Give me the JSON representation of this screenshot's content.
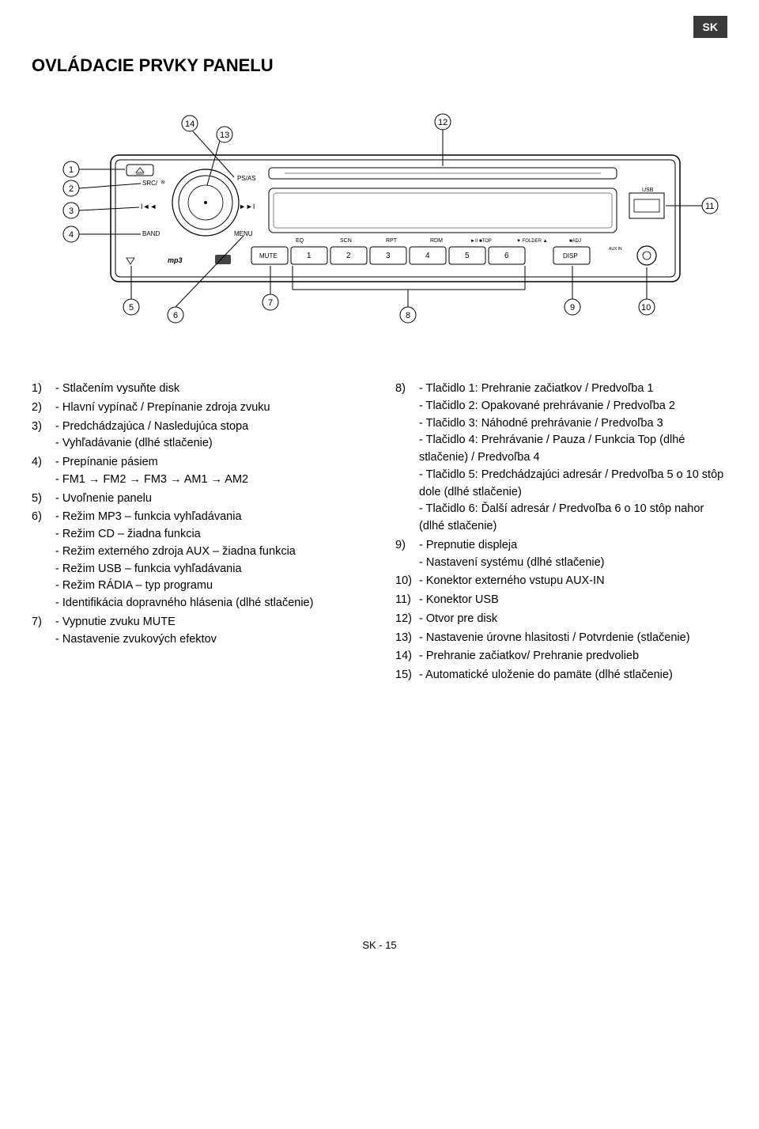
{
  "lang_badge": "SK",
  "title": "OVLÁDACIE PRVKY PANELU",
  "footer": "SK - 15",
  "diagram": {
    "callouts": [
      "1",
      "2",
      "3",
      "4",
      "5",
      "6",
      "7",
      "8",
      "9",
      "10",
      "11",
      "12",
      "13",
      "14"
    ],
    "panel_labels": {
      "src": "SRC/",
      "psas": "PS/AS",
      "prev": "I◄◄",
      "next": "►►I",
      "band": "BAND",
      "menu": "MENU",
      "mp3": "mp3",
      "usb": "USB",
      "mute": "MUTE",
      "disp": "DISP",
      "aux": "AUX IN",
      "eq": "EQ",
      "scn": "SCN",
      "rpt": "RPT",
      "rdm": "RDM",
      "top": "►II ■TOP",
      "folder": "▼ FOLDER ▲",
      "adj": "■ADJ",
      "num1": "1",
      "num2": "2",
      "num3": "3",
      "num4": "4",
      "num5": "5",
      "num6": "6"
    }
  },
  "left_items": [
    {
      "num": "1)",
      "lines": [
        "- Stlačením vysuňte disk"
      ]
    },
    {
      "num": "2)",
      "lines": [
        "- Hlavní vypínač / Prepínanie zdroja zvuku"
      ]
    },
    {
      "num": "3)",
      "lines": [
        "- Predchádzajúca / Nasledujúca stopa",
        "- Vyhľadávanie (dlhé stlačenie)"
      ]
    },
    {
      "num": "4)",
      "lines": [
        "- Prepínanie pásiem",
        "- FM1 → FM2 → FM3 → AM1 → AM2"
      ]
    },
    {
      "num": "5)",
      "lines": [
        "- Uvoľnenie panelu"
      ]
    },
    {
      "num": "6)",
      "lines": [
        "- Režim MP3 – funkcia vyhľadávania",
        "- Režim CD – žiadna funkcia",
        "- Režim externého zdroja AUX – žiadna funkcia",
        "- Režim USB – funkcia vyhľadávania",
        "- Režim RÁDIA – typ programu",
        "- Identifikácia dopravného hlásenia (dlhé stlačenie)"
      ]
    },
    {
      "num": "7)",
      "lines": [
        "- Vypnutie zvuku MUTE",
        "- Nastavenie zvukových efektov"
      ]
    }
  ],
  "right_items": [
    {
      "num": "8)",
      "lines": [
        "- Tlačidlo 1: Prehranie začiatkov / Predvoľba 1",
        "- Tlačidlo 2: Opakované prehrávanie / Predvoľba 2",
        "- Tlačidlo 3: Náhodné prehrávanie / Predvoľba 3",
        "- Tlačidlo 4: Prehrávanie / Pauza / Funkcia Top (dlhé stlačenie) / Predvoľba 4",
        "- Tlačidlo 5: Predchádzajúci adresár / Predvoľba 5 o 10 stôp dole (dlhé stlačenie)",
        "- Tlačidlo 6: Ďalší adresár / Predvoľba 6 o 10 stôp nahor (dlhé stlačenie)"
      ]
    },
    {
      "num": "9)",
      "lines": [
        "- Prepnutie displeja",
        "- Nastavení systému (dlhé stlačenie)"
      ]
    },
    {
      "num": "10)",
      "lines": [
        "- Konektor externého vstupu AUX-IN"
      ]
    },
    {
      "num": "11)",
      "lines": [
        "- Konektor USB"
      ]
    },
    {
      "num": "12)",
      "lines": [
        "- Otvor pre disk"
      ]
    },
    {
      "num": "13)",
      "lines": [
        "- Nastavenie úrovne hlasitosti / Potvrdenie (stlačenie)"
      ]
    },
    {
      "num": "14)",
      "lines": [
        "- Prehranie začiatkov/ Prehranie predvolieb"
      ]
    },
    {
      "num": "15)",
      "lines": [
        "- Automatické uloženie do pamäte (dlhé stlačenie)"
      ]
    }
  ]
}
